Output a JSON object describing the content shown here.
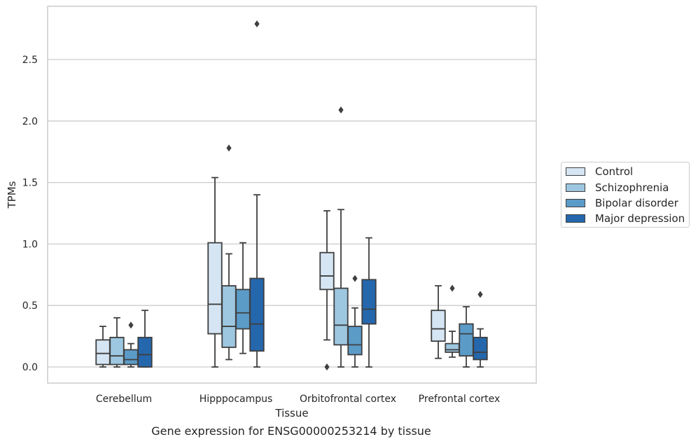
{
  "caption": "Gene expression for ENSG00000253214 by tissue",
  "chart_data": {
    "type": "box",
    "title": "",
    "xlabel": "Tissue",
    "ylabel": "TPMs",
    "ylim": [
      -0.13,
      2.94
    ],
    "yticks": [
      "0.0",
      "0.5",
      "1.0",
      "1.5",
      "2.0",
      "2.5"
    ],
    "grid": "horizontal",
    "legend_position": "right",
    "categories": [
      "Cerebellum",
      "Hipppocampus",
      "Orbitofrontal cortex",
      "Prefrontal cortex"
    ],
    "series": [
      {
        "name": "Control",
        "color": "#d5e5f3",
        "boxes": [
          {
            "whisker_low": 0.0,
            "q1": 0.02,
            "median": 0.11,
            "q3": 0.22,
            "whisker_high": 0.33,
            "outliers": []
          },
          {
            "whisker_low": 0.0,
            "q1": 0.27,
            "median": 0.51,
            "q3": 1.01,
            "whisker_high": 1.54,
            "outliers": []
          },
          {
            "whisker_low": 0.22,
            "q1": 0.63,
            "median": 0.74,
            "q3": 0.93,
            "whisker_high": 1.27,
            "outliers": [
              0.0
            ]
          },
          {
            "whisker_low": 0.07,
            "q1": 0.21,
            "median": 0.31,
            "q3": 0.46,
            "whisker_high": 0.66,
            "outliers": []
          }
        ]
      },
      {
        "name": "Schizophrenia",
        "color": "#9dc7e0",
        "boxes": [
          {
            "whisker_low": 0.0,
            "q1": 0.02,
            "median": 0.09,
            "q3": 0.24,
            "whisker_high": 0.4,
            "outliers": []
          },
          {
            "whisker_low": 0.06,
            "q1": 0.16,
            "median": 0.33,
            "q3": 0.66,
            "whisker_high": 0.92,
            "outliers": [
              1.78
            ]
          },
          {
            "whisker_low": 0.0,
            "q1": 0.18,
            "median": 0.34,
            "q3": 0.64,
            "whisker_high": 1.28,
            "outliers": [
              2.09
            ]
          },
          {
            "whisker_low": 0.08,
            "q1": 0.12,
            "median": 0.14,
            "q3": 0.19,
            "whisker_high": 0.29,
            "outliers": [
              0.64
            ]
          }
        ]
      },
      {
        "name": "Bipolar disorder",
        "color": "#5b9bc8",
        "boxes": [
          {
            "whisker_low": 0.0,
            "q1": 0.02,
            "median": 0.06,
            "q3": 0.14,
            "whisker_high": 0.19,
            "outliers": [
              0.34
            ]
          },
          {
            "whisker_low": 0.11,
            "q1": 0.31,
            "median": 0.44,
            "q3": 0.63,
            "whisker_high": 1.01,
            "outliers": []
          },
          {
            "whisker_low": 0.0,
            "q1": 0.1,
            "median": 0.18,
            "q3": 0.33,
            "whisker_high": 0.48,
            "outliers": [
              0.72
            ]
          },
          {
            "whisker_low": 0.0,
            "q1": 0.09,
            "median": 0.27,
            "q3": 0.35,
            "whisker_high": 0.49,
            "outliers": []
          }
        ]
      },
      {
        "name": "Major depression",
        "color": "#2567ad",
        "boxes": [
          {
            "whisker_low": 0.0,
            "q1": 0.0,
            "median": 0.1,
            "q3": 0.24,
            "whisker_high": 0.46,
            "outliers": []
          },
          {
            "whisker_low": 0.0,
            "q1": 0.13,
            "median": 0.35,
            "q3": 0.72,
            "whisker_high": 1.4,
            "outliers": [
              2.79
            ]
          },
          {
            "whisker_low": 0.0,
            "q1": 0.35,
            "median": 0.47,
            "q3": 0.71,
            "whisker_high": 1.05,
            "outliers": []
          },
          {
            "whisker_low": 0.0,
            "q1": 0.06,
            "median": 0.12,
            "q3": 0.24,
            "whisker_high": 0.31,
            "outliers": [
              0.59
            ]
          }
        ]
      }
    ]
  }
}
